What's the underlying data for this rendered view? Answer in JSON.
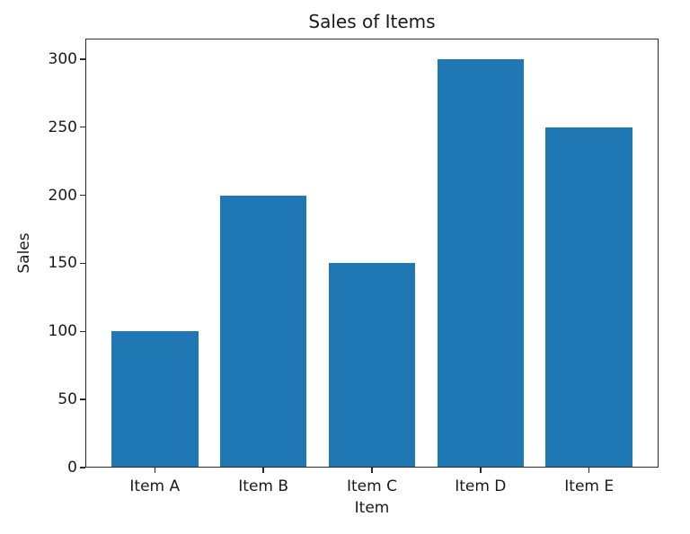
{
  "chart_data": {
    "type": "bar",
    "title": "Sales of Items",
    "xlabel": "Item",
    "ylabel": "Sales",
    "categories": [
      "Item A",
      "Item B",
      "Item C",
      "Item D",
      "Item E"
    ],
    "values": [
      100,
      200,
      150,
      300,
      250
    ],
    "yticks": [
      0,
      50,
      100,
      150,
      200,
      250,
      300
    ],
    "ylim": [
      0,
      315
    ],
    "bar_width_fraction": 0.8,
    "grid": false,
    "legend": false,
    "bar_color": "#1f77b4",
    "background_color": "#ffffff",
    "axis_color": "#2b2b2b",
    "text_color": "#1a1a1a"
  }
}
